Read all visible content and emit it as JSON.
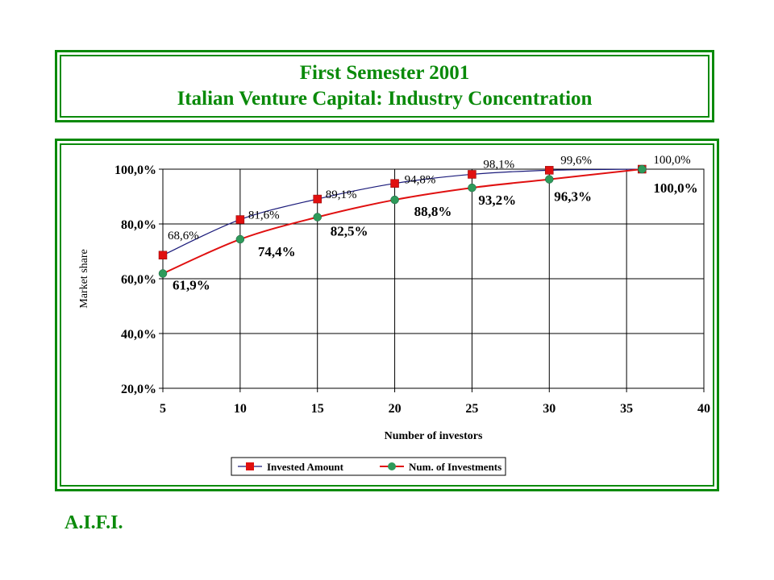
{
  "title": {
    "line1": "First Semester 2001",
    "line2": "Italian Venture Capital: Industry Concentration"
  },
  "footer": "A.I.F.I.",
  "colors": {
    "frame": "#0a8a0a",
    "invested": "#e01010",
    "invested_line": "#1a1a7a",
    "investments": "#2e9a5a",
    "investments_line": "#e01010"
  },
  "chart_data": {
    "type": "line",
    "xlabel": "Number of investors",
    "ylabel": "Market share",
    "xlim": [
      5,
      40
    ],
    "ylim": [
      20,
      100
    ],
    "xticks": [
      "5",
      "10",
      "15",
      "20",
      "25",
      "30",
      "35",
      "40"
    ],
    "yticks": [
      "20,0%",
      "40,0%",
      "60,0%",
      "80,0%",
      "100,0%"
    ],
    "grid": true,
    "legend_position": "bottom",
    "series": [
      {
        "name": "Invested Amount",
        "marker": "square",
        "x": [
          5,
          10,
          15,
          20,
          25,
          30,
          36
        ],
        "y": [
          68.6,
          81.6,
          89.1,
          94.8,
          98.1,
          99.6,
          100.0
        ],
        "labels": [
          "68,6%",
          "81,6%",
          "89,1%",
          "94,8%",
          "98,1%",
          "99,6%",
          "100,0%"
        ]
      },
      {
        "name": "Num. of Investments",
        "marker": "circle",
        "x": [
          5,
          10,
          15,
          20,
          25,
          30,
          36
        ],
        "y": [
          61.9,
          74.4,
          82.5,
          88.8,
          93.2,
          96.3,
          100.0
        ],
        "labels": [
          "61,9%",
          "74,4%",
          "82,5%",
          "88,8%",
          "93,2%",
          "96,3%",
          "100,0%"
        ]
      }
    ]
  }
}
